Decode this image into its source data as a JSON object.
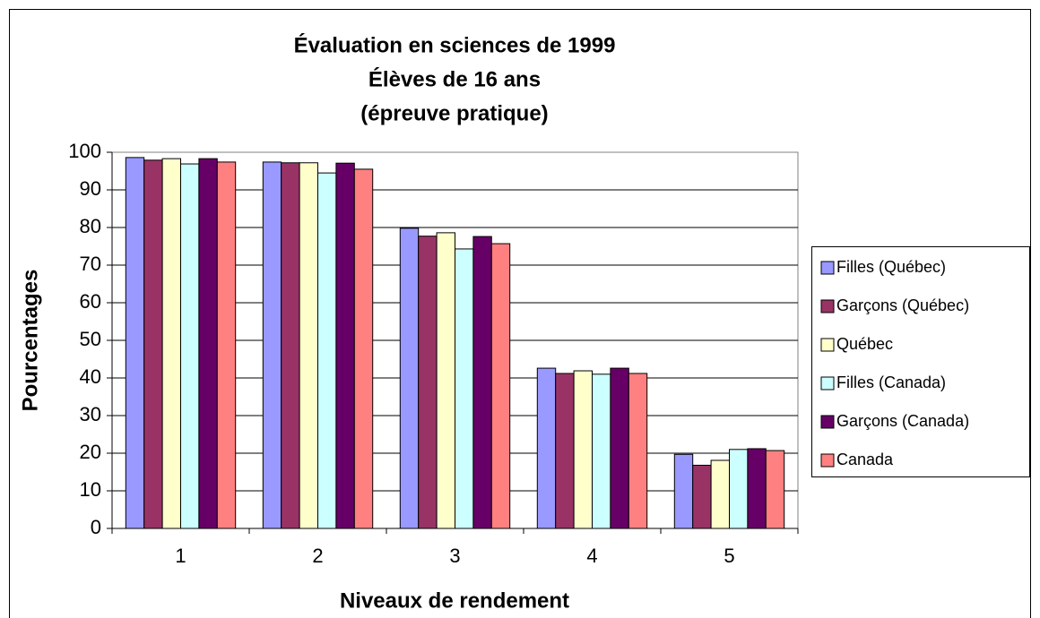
{
  "chart_data": {
    "type": "bar",
    "title": [
      "Évaluation en sciences de 1999",
      "Élèves de 16 ans",
      "(épreuve pratique)"
    ],
    "xlabel": "Niveaux de rendement",
    "ylabel": "Pourcentages",
    "categories": [
      "1",
      "2",
      "3",
      "4",
      "5"
    ],
    "series": [
      {
        "name": "Filles (Québec)",
        "color": "#9999ff",
        "values": [
          98.6,
          97.4,
          79.8,
          42.6,
          19.7
        ]
      },
      {
        "name": "Garçons (Québec)",
        "color": "#993366",
        "values": [
          97.9,
          97.2,
          77.7,
          41.2,
          16.8
        ]
      },
      {
        "name": "Québec",
        "color": "#ffffcc",
        "values": [
          98.3,
          97.2,
          78.6,
          41.9,
          18.1
        ]
      },
      {
        "name": "Filles (Canada)",
        "color": "#ccffff",
        "values": [
          96.9,
          94.5,
          74.3,
          41.0,
          21.0
        ]
      },
      {
        "name": "Garçons (Canada)",
        "color": "#660066",
        "values": [
          98.3,
          97.1,
          77.6,
          42.6,
          21.2
        ]
      },
      {
        "name": "Canada",
        "color": "#ff8080",
        "values": [
          97.4,
          95.5,
          75.7,
          41.2,
          20.7
        ]
      }
    ],
    "ylim": [
      0,
      100
    ],
    "yticks": [
      0,
      10,
      20,
      30,
      40,
      50,
      60,
      70,
      80,
      90,
      100
    ],
    "grid": true,
    "legend": "right"
  }
}
